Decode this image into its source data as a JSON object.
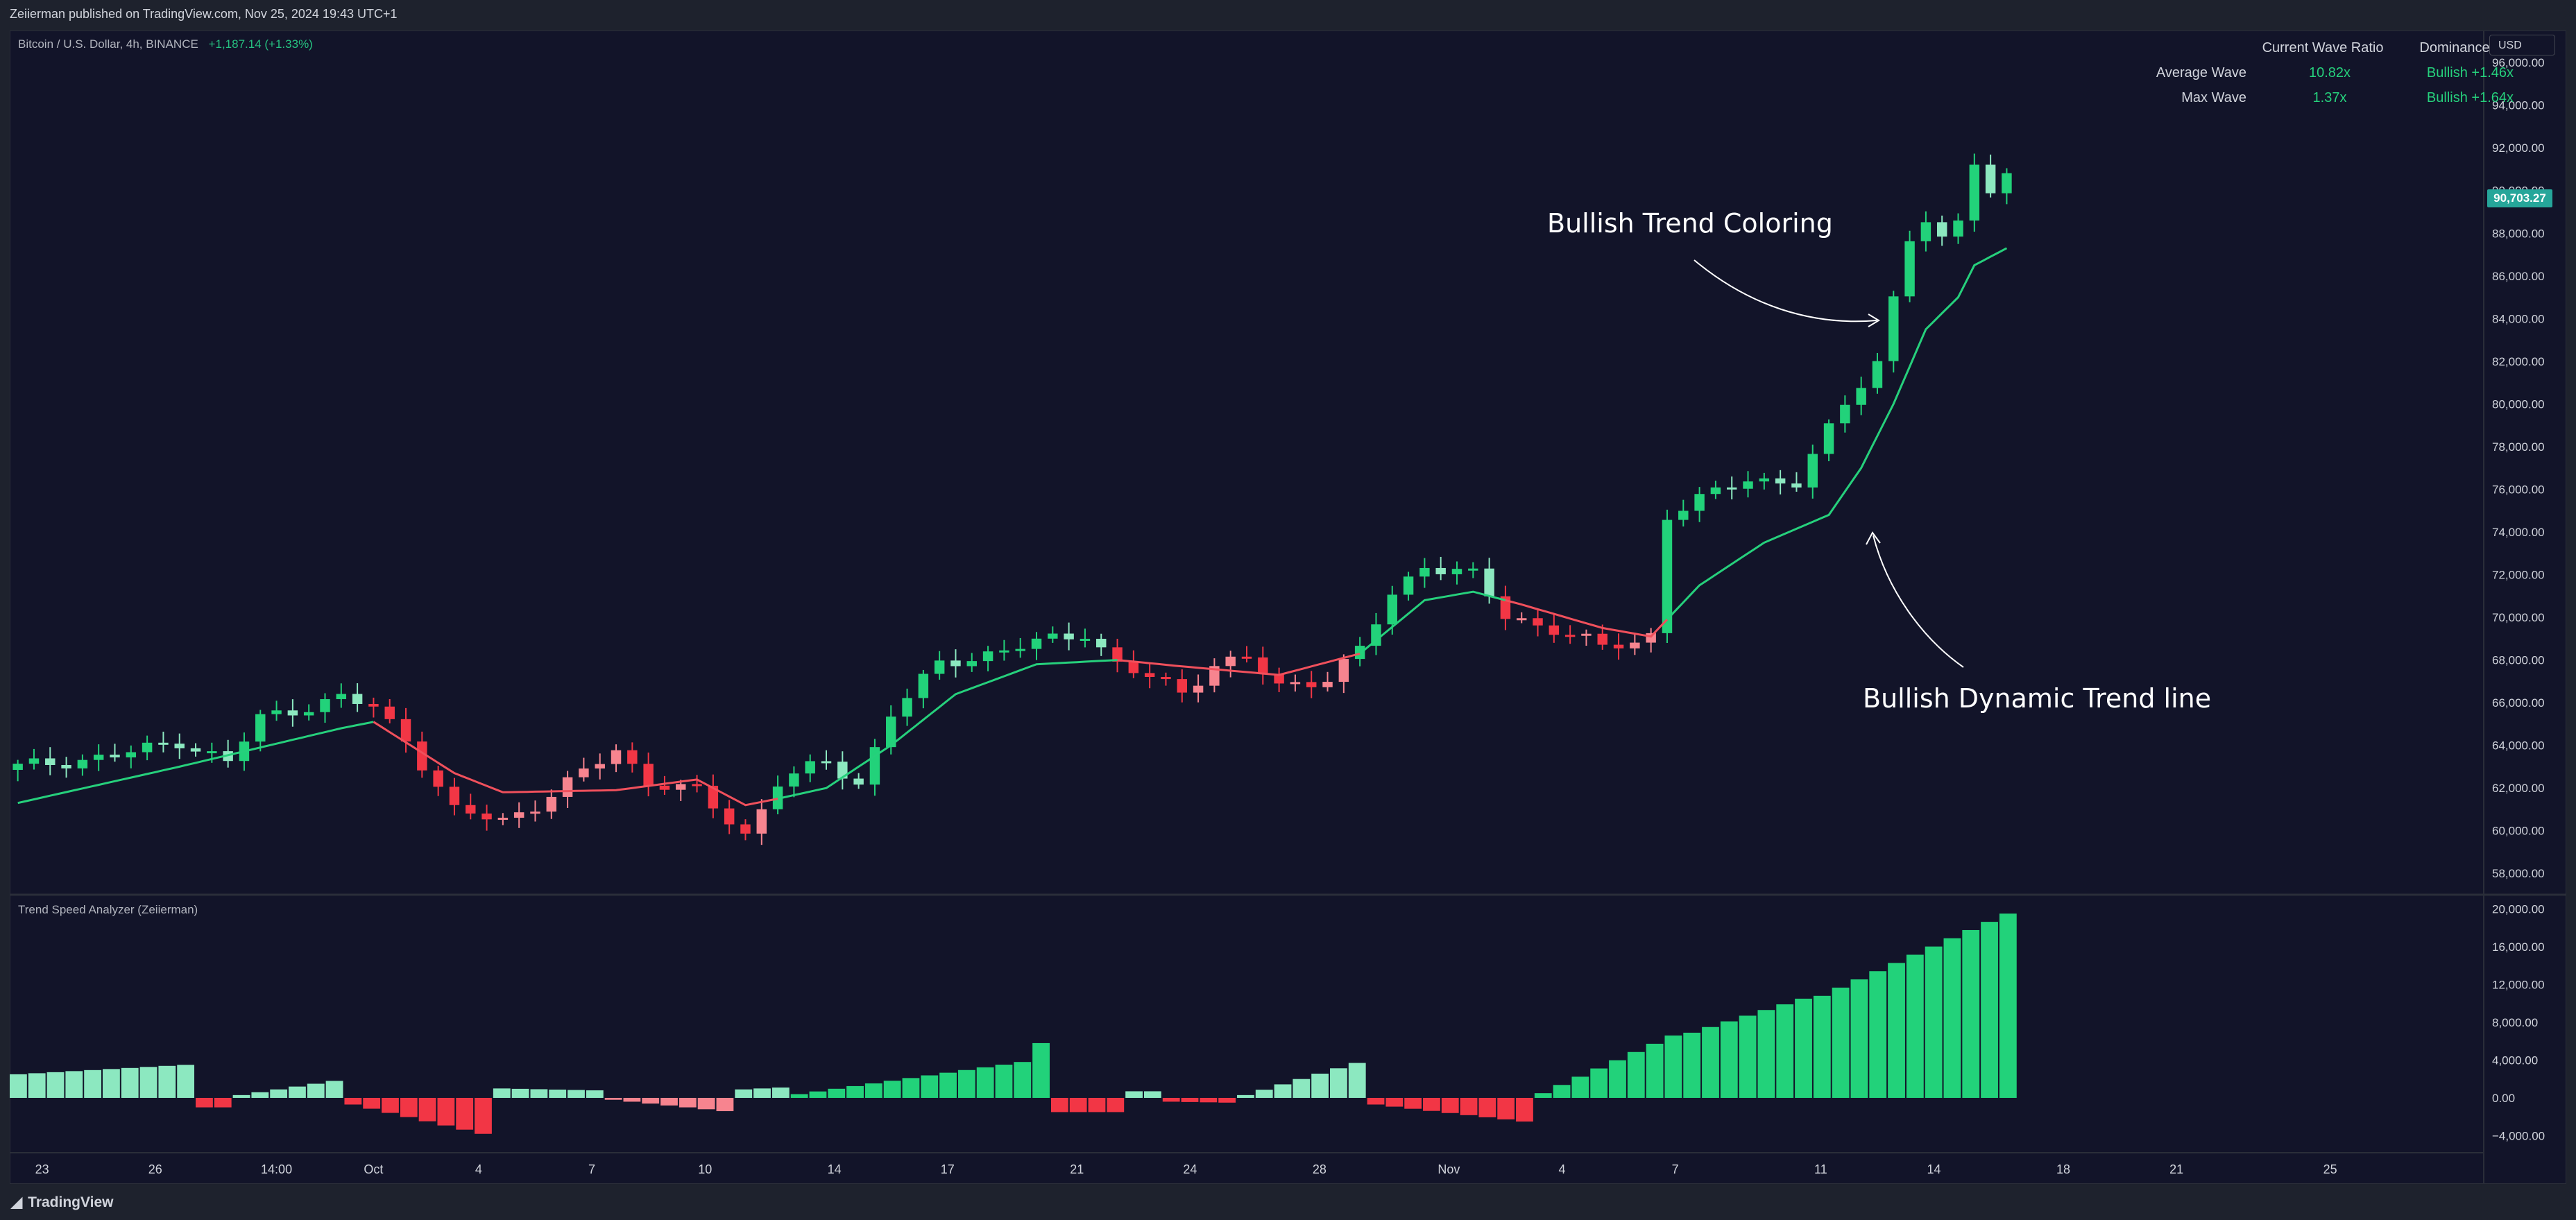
{
  "header": {
    "published": "Zeiierman published on TradingView.com, Nov 25, 2024 19:43 UTC+1"
  },
  "symbol": {
    "name": "Bitcoin / U.S. Dollar, 4h, BINANCE",
    "change": "+1,187.14 (+1.33%)"
  },
  "currency_button": "USD",
  "last_price": "90,703.27",
  "indicator_label": "Trend Speed Analyzer (Zeiierman)",
  "wave_table": {
    "headers": [
      "Current Wave Ratio",
      "Dominance"
    ],
    "rows": [
      {
        "label": "Average Wave",
        "ratio": "10.82x",
        "dominance": "Bullish +1.46x"
      },
      {
        "label": "Max Wave",
        "ratio": "1.37x",
        "dominance": "Bullish +1.64x"
      }
    ]
  },
  "annotations": {
    "trend_coloring": "Bullish Trend Coloring",
    "trend_line": "Bullish Dynamic Trend line"
  },
  "footer": {
    "brand": "TradingView"
  },
  "colors": {
    "bg": "#121429",
    "bull": "#22d27a",
    "bull_light": "#8ce8c0",
    "bear": "#f23645",
    "bear_light": "#f7848f",
    "trend_up": "#26d07c",
    "trend_down": "#f0505c",
    "text": "#d1d4dc",
    "badge": "#26a69a"
  },
  "chart_data": [
    {
      "type": "candlestick",
      "title": "Bitcoin / U.S. Dollar, 4h, BINANCE",
      "ylim": [
        57000,
        97500
      ],
      "y_ticks": [
        58000,
        60000,
        62000,
        64000,
        66000,
        68000,
        70000,
        72000,
        74000,
        76000,
        78000,
        80000,
        82000,
        84000,
        86000,
        88000,
        90000,
        92000,
        94000,
        96000
      ],
      "y_tick_labels": [
        "58,000.00",
        "60,000.00",
        "62,000.00",
        "64,000.00",
        "66,000.00",
        "68,000.00",
        "70,000.00",
        "72,000.00",
        "74,000.00",
        "76,000.00",
        "78,000.00",
        "80,000.00",
        "82,000.00",
        "84,000.00",
        "86,000.00",
        "88,000.00",
        "90,000.00",
        "92,000.00",
        "94,000.00",
        "96,000.00"
      ],
      "x_tick_labels": [
        "23",
        "26",
        "14:00",
        "Oct",
        "4",
        "7",
        "10",
        "14",
        "17",
        "21",
        "24",
        "28",
        "Nov",
        "4",
        "7",
        "11",
        "14",
        "18",
        "21",
        "25"
      ],
      "x_tick_positions": [
        2,
        9,
        16.5,
        22.5,
        29,
        36,
        43,
        51,
        58,
        66,
        73,
        81,
        89,
        96,
        103,
        112,
        119,
        127,
        134,
        143.5
      ],
      "x_range": [
        0,
        153
      ],
      "keypoints": [
        [
          0,
          63000
        ],
        [
          6,
          63500
        ],
        [
          10,
          64200
        ],
        [
          13,
          63200
        ],
        [
          15,
          65300
        ],
        [
          20,
          66200
        ],
        [
          22,
          65800
        ],
        [
          24,
          64300
        ],
        [
          27,
          60900
        ],
        [
          30,
          60500
        ],
        [
          32,
          61200
        ],
        [
          34,
          62200
        ],
        [
          37,
          63800
        ],
        [
          39,
          62300
        ],
        [
          42,
          61800
        ],
        [
          45,
          59800
        ],
        [
          47,
          62300
        ],
        [
          50,
          63200
        ],
        [
          52,
          62200
        ],
        [
          54,
          65500
        ],
        [
          57,
          67800
        ],
        [
          60,
          68300
        ],
        [
          63,
          68800
        ],
        [
          66,
          69300
        ],
        [
          68,
          67800
        ],
        [
          72,
          66500
        ],
        [
          74,
          67800
        ],
        [
          76,
          68100
        ],
        [
          78,
          66700
        ],
        [
          81,
          67200
        ],
        [
          83,
          68500
        ],
        [
          85,
          71000
        ],
        [
          87,
          72500
        ],
        [
          90,
          72000
        ],
        [
          92,
          70000
        ],
        [
          95,
          69500
        ],
        [
          98,
          68600
        ],
        [
          100,
          68800
        ],
        [
          101,
          69200
        ],
        [
          102,
          74800
        ],
        [
          104,
          75500
        ],
        [
          107,
          76500
        ],
        [
          110,
          76300
        ],
        [
          111,
          77500
        ],
        [
          113,
          80000
        ],
        [
          115,
          82000
        ],
        [
          116,
          85000
        ],
        [
          117,
          87800
        ],
        [
          118,
          88500
        ],
        [
          119,
          87500
        ],
        [
          120,
          88500
        ],
        [
          121,
          91500
        ],
        [
          122,
          90000
        ],
        [
          123,
          90700
        ]
      ],
      "trend_keypoints": [
        [
          0,
          61300
        ],
        [
          10,
          63000
        ],
        [
          20,
          64800
        ],
        [
          22,
          65100
        ],
        [
          27,
          62700
        ],
        [
          30,
          61800
        ],
        [
          37,
          61900
        ],
        [
          42,
          62400
        ],
        [
          45,
          61200
        ],
        [
          47,
          61500
        ],
        [
          50,
          62000
        ],
        [
          54,
          64000
        ],
        [
          58,
          66400
        ],
        [
          63,
          67800
        ],
        [
          68,
          68000
        ],
        [
          72,
          67700
        ],
        [
          78,
          67300
        ],
        [
          83,
          68300
        ],
        [
          87,
          70800
        ],
        [
          90,
          71200
        ],
        [
          93,
          70600
        ],
        [
          98,
          69500
        ],
        [
          101,
          69100
        ],
        [
          104,
          71500
        ],
        [
          108,
          73500
        ],
        [
          112,
          74800
        ],
        [
          114,
          77000
        ],
        [
          116,
          80000
        ],
        [
          118,
          83500
        ],
        [
          120,
          85000
        ],
        [
          121,
          86500
        ],
        [
          123,
          87300
        ]
      ],
      "trend_direction": [
        [
          0,
          21,
          "up"
        ],
        [
          22,
          46,
          "down"
        ],
        [
          47,
          67,
          "up"
        ],
        [
          68,
          82,
          "down"
        ],
        [
          83,
          91,
          "up"
        ],
        [
          92,
          101,
          "down"
        ],
        [
          102,
          123,
          "up"
        ]
      ]
    },
    {
      "type": "bar",
      "title": "Trend Speed Analyzer (Zeiierman)",
      "ylim": [
        -5800,
        21500
      ],
      "y_ticks": [
        -4000,
        0,
        4000,
        8000,
        12000,
        16000,
        20000
      ],
      "y_tick_labels": [
        "−4,000.00",
        "0.00",
        "4,000.00",
        "8,000.00",
        "12,000.00",
        "16,000.00",
        "20,000.00"
      ],
      "segments": [
        {
          "from": 0,
          "to": 9,
          "start": 2500,
          "end": 3500,
          "color": "bull_light"
        },
        {
          "from": 10,
          "to": 11,
          "start": -1000,
          "end": -1000,
          "color": "bear"
        },
        {
          "from": 12,
          "to": 17,
          "start": 300,
          "end": 1800,
          "color": "bull_light"
        },
        {
          "from": 18,
          "to": 25,
          "start": -700,
          "end": -3800,
          "color": "bear"
        },
        {
          "from": 26,
          "to": 31,
          "start": 1000,
          "end": 800,
          "color": "bull_light"
        },
        {
          "from": 32,
          "to": 38,
          "start": -200,
          "end": -1400,
          "color": "bear_light"
        },
        {
          "from": 39,
          "to": 41,
          "start": 900,
          "end": 1100,
          "color": "bull_light"
        },
        {
          "from": 42,
          "to": 54,
          "start": 400,
          "end": 3800,
          "color": "bull"
        },
        {
          "from": 55,
          "to": 55,
          "start": 5800,
          "end": 5800,
          "color": "bull"
        },
        {
          "from": 56,
          "to": 59,
          "start": -1500,
          "end": -1500,
          "color": "bear"
        },
        {
          "from": 60,
          "to": 61,
          "start": 700,
          "end": 700,
          "color": "bull_light"
        },
        {
          "from": 62,
          "to": 65,
          "start": -400,
          "end": -500,
          "color": "bear"
        },
        {
          "from": 66,
          "to": 72,
          "start": 300,
          "end": 3700,
          "color": "bull_light"
        },
        {
          "from": 73,
          "to": 81,
          "start": -700,
          "end": -2500,
          "color": "bear"
        },
        {
          "from": 82,
          "to": 89,
          "start": 500,
          "end": 6600,
          "color": "bull"
        },
        {
          "from": 90,
          "to": 96,
          "start": 6900,
          "end": 10500,
          "color": "bull"
        },
        {
          "from": 97,
          "to": 107,
          "start": 10800,
          "end": 19500,
          "color": "bull"
        }
      ]
    }
  ]
}
